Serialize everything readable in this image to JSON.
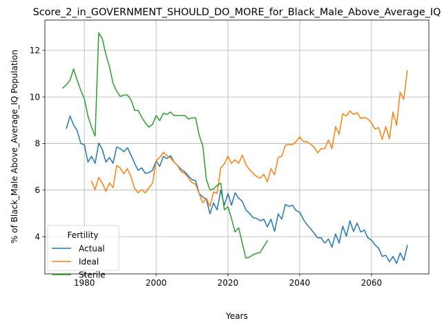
{
  "chart_data": {
    "type": "line",
    "title": "Score_2_in_GOVERNMENT_SHOULD_DO_MORE_for_Black_Male_Above_Average_IQ",
    "xlabel": "Years",
    "ylabel": "% of Black_Male Above_Average_IQ Population",
    "xlim": [
      1969,
      2076
    ],
    "ylim": [
      2.4,
      13.3
    ],
    "xticks": [
      1980,
      2000,
      2020,
      2040,
      2060
    ],
    "yticks": [
      4,
      6,
      8,
      10,
      12
    ],
    "grid": true,
    "legend": {
      "title": "Fertility",
      "placement": "lower-left"
    },
    "series": [
      {
        "name": "Actual",
        "color": "#1f77b4",
        "x": [
          1975,
          1976,
          1977,
          1978,
          1979,
          1980,
          1981,
          1982,
          1983,
          1984,
          1985,
          1986,
          1987,
          1988,
          1989,
          1990,
          1991,
          1992,
          1993,
          1994,
          1995,
          1996,
          1997,
          1998,
          1999,
          2000,
          2001,
          2002,
          2003,
          2004,
          2005,
          2006,
          2007,
          2008,
          2009,
          2010,
          2011,
          2012,
          2013,
          2014,
          2015,
          2016,
          2017,
          2018,
          2019,
          2020,
          2021,
          2022,
          2023,
          2024,
          2025,
          2026,
          2027,
          2028,
          2029,
          2030,
          2031,
          2032,
          2033,
          2034,
          2035,
          2036,
          2037,
          2038,
          2039,
          2040,
          2041,
          2042,
          2043,
          2044,
          2045,
          2046,
          2047,
          2048,
          2049,
          2050,
          2051,
          2052,
          2053,
          2054,
          2055,
          2056,
          2057,
          2058,
          2059,
          2060,
          2061,
          2062,
          2063,
          2064,
          2065,
          2066,
          2067,
          2068,
          2069,
          2070
        ],
        "y": [
          8.65,
          9.18,
          8.8,
          8.55,
          8.0,
          7.95,
          7.2,
          7.45,
          7.15,
          8.02,
          7.75,
          7.2,
          7.4,
          7.15,
          7.85,
          7.78,
          7.65,
          7.82,
          7.5,
          7.15,
          6.85,
          6.95,
          6.72,
          6.75,
          6.85,
          7.25,
          7.02,
          7.45,
          7.35,
          7.48,
          7.2,
          7.05,
          6.88,
          6.78,
          6.6,
          6.45,
          6.4,
          5.85,
          5.7,
          5.6,
          4.98,
          5.45,
          5.15,
          6.0,
          5.35,
          5.85,
          5.35,
          5.88,
          5.65,
          5.52,
          5.15,
          5.0,
          4.82,
          4.78,
          4.68,
          4.75,
          4.42,
          4.75,
          4.22,
          4.98,
          4.75,
          5.38,
          5.3,
          5.35,
          5.12,
          5.05,
          4.75,
          4.52,
          4.35,
          4.15,
          3.95,
          3.95,
          3.72,
          3.9,
          3.55,
          4.12,
          3.72,
          4.45,
          4.02,
          4.68,
          4.22,
          4.58,
          4.2,
          4.28,
          3.95,
          3.85,
          3.65,
          3.5,
          3.15,
          3.2,
          2.92,
          3.15,
          2.85,
          3.3,
          2.98,
          3.62
        ]
      },
      {
        "name": "Ideal",
        "color": "#ff7f0e",
        "x": [
          1982,
          1983,
          1984,
          1985,
          1986,
          1987,
          1988,
          1989,
          1990,
          1991,
          1992,
          1993,
          1994,
          1995,
          1996,
          1997,
          1998,
          1999,
          2000,
          2001,
          2002,
          2003,
          2004,
          2005,
          2006,
          2007,
          2008,
          2009,
          2010,
          2011,
          2012,
          2013,
          2014,
          2015,
          2016,
          2017,
          2018,
          2019,
          2020,
          2021,
          2022,
          2023,
          2024,
          2025,
          2026,
          2027,
          2028,
          2029,
          2030,
          2031,
          2032,
          2033,
          2034,
          2035,
          2036,
          2037,
          2038,
          2039,
          2040,
          2041,
          2042,
          2043,
          2044,
          2045,
          2046,
          2047,
          2048,
          2049,
          2050,
          2051,
          2052,
          2053,
          2054,
          2055,
          2056,
          2057,
          2058,
          2059,
          2060,
          2061,
          2062,
          2063,
          2064,
          2065,
          2066,
          2067,
          2068,
          2069,
          2070
        ],
        "y": [
          6.38,
          6.02,
          6.55,
          6.3,
          5.95,
          6.3,
          6.1,
          7.05,
          6.95,
          6.7,
          6.92,
          6.58,
          6.08,
          5.88,
          6.02,
          5.88,
          6.1,
          6.3,
          7.25,
          7.4,
          7.62,
          7.48,
          7.38,
          7.2,
          7.05,
          6.78,
          6.72,
          6.52,
          6.32,
          6.25,
          5.85,
          5.45,
          5.65,
          5.3,
          5.92,
          5.85,
          6.95,
          7.12,
          7.45,
          7.15,
          7.3,
          7.15,
          7.5,
          7.1,
          6.88,
          6.72,
          6.58,
          6.52,
          6.68,
          6.35,
          6.92,
          6.65,
          7.4,
          7.45,
          7.92,
          7.95,
          7.95,
          8.08,
          8.28,
          8.08,
          8.08,
          7.98,
          7.85,
          7.6,
          7.78,
          7.78,
          8.15,
          7.78,
          8.72,
          8.4,
          9.28,
          9.18,
          9.4,
          9.25,
          9.32,
          9.08,
          9.12,
          9.05,
          8.88,
          8.62,
          8.68,
          8.18,
          8.72,
          8.2,
          9.35,
          8.78,
          10.2,
          9.9,
          11.12
        ]
      },
      {
        "name": "Sterile",
        "color": "#2ca02c",
        "x": [
          1974,
          1975,
          1976,
          1977,
          1978,
          1979,
          1980,
          1981,
          1982,
          1983,
          1984,
          1985,
          1986,
          1987,
          1988,
          1989,
          1990,
          1991,
          1992,
          1993,
          1994,
          1995,
          1996,
          1997,
          1998,
          1999,
          2000,
          2001,
          2002,
          2003,
          2004,
          2005,
          2006,
          2007,
          2008,
          2009,
          2010,
          2011,
          2012,
          2013,
          2014,
          2015,
          2016,
          2017,
          2018,
          2019,
          2020,
          2021,
          2022,
          2023,
          2024,
          2025,
          2026,
          2027,
          2028,
          2029,
          2030,
          2031
        ],
        "y": [
          10.38,
          10.52,
          10.72,
          11.2,
          10.72,
          10.28,
          9.92,
          9.18,
          8.7,
          8.32,
          12.75,
          12.5,
          11.82,
          11.3,
          10.58,
          10.25,
          10.02,
          10.08,
          10.08,
          9.88,
          9.42,
          9.42,
          9.12,
          8.88,
          8.7,
          8.82,
          9.2,
          8.98,
          9.3,
          9.25,
          9.35,
          9.2,
          9.2,
          9.2,
          9.2,
          9.05,
          9.1,
          9.1,
          8.35,
          7.9,
          6.45,
          6.0,
          6.05,
          6.2,
          6.3,
          5.15,
          5.28,
          4.78,
          4.2,
          4.38,
          3.72,
          3.08,
          3.12,
          3.22,
          3.28,
          3.32,
          3.58,
          3.82
        ]
      }
    ]
  }
}
